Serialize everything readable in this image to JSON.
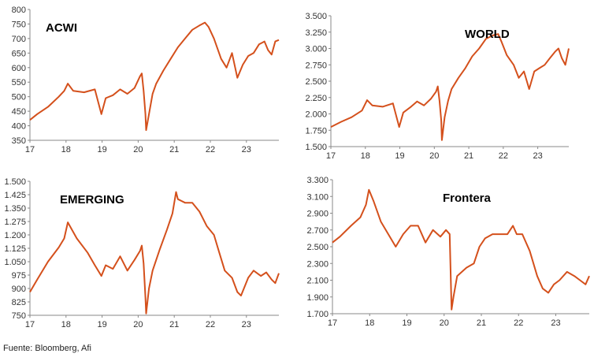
{
  "chart_data": [
    {
      "type": "line",
      "title": "ACWI",
      "ylim": [
        350,
        800
      ],
      "yticks": [
        "350",
        "400",
        "450",
        "500",
        "550",
        "600",
        "650",
        "700",
        "750",
        "800"
      ],
      "xlim": [
        17,
        23.9
      ],
      "xticks": [
        "17",
        "18",
        "19",
        "20",
        "21",
        "22",
        "23"
      ],
      "color": "#D4501C",
      "series": [
        {
          "x": [
            17,
            17.2,
            17.5,
            17.8,
            17.95,
            18.05,
            18.2,
            18.5,
            18.8,
            18.98,
            19.1,
            19.3,
            19.5,
            19.7,
            19.9,
            20.05,
            20.1,
            20.15,
            20.2,
            20.22,
            20.3,
            20.4,
            20.5,
            20.7,
            20.9,
            21.1,
            21.3,
            21.5,
            21.7,
            21.85,
            21.95,
            22.1,
            22.3,
            22.45,
            22.6,
            22.75,
            22.9,
            23.05,
            23.2,
            23.35,
            23.5,
            23.6,
            23.7,
            23.8,
            23.9
          ],
          "y": [
            420,
            440,
            465,
            500,
            520,
            545,
            520,
            515,
            525,
            440,
            495,
            505,
            525,
            510,
            530,
            570,
            580,
            520,
            440,
            385,
            440,
            510,
            545,
            590,
            630,
            670,
            700,
            730,
            745,
            755,
            740,
            700,
            630,
            600,
            650,
            565,
            610,
            640,
            650,
            680,
            690,
            660,
            645,
            690,
            695
          ]
        }
      ]
    },
    {
      "type": "line",
      "title": "WORLD",
      "ylim": [
        1500,
        3500
      ],
      "yticks": [
        "1.500",
        "1.750",
        "2.000",
        "2.250",
        "2.500",
        "2.750",
        "3.000",
        "3.250",
        "3.500"
      ],
      "xlim": [
        17,
        23.9
      ],
      "xticks": [
        "17",
        "18",
        "19",
        "20",
        "21",
        "22",
        "23"
      ],
      "color": "#D4501C",
      "series": [
        {
          "x": [
            17,
            17.3,
            17.6,
            17.9,
            18.05,
            18.2,
            18.5,
            18.8,
            18.98,
            19.1,
            19.3,
            19.5,
            19.7,
            19.9,
            20.05,
            20.1,
            20.15,
            20.2,
            20.22,
            20.3,
            20.4,
            20.5,
            20.7,
            20.9,
            21.1,
            21.3,
            21.5,
            21.7,
            21.85,
            21.95,
            22.1,
            22.3,
            22.45,
            22.6,
            22.75,
            22.9,
            23.05,
            23.2,
            23.35,
            23.5,
            23.6,
            23.7,
            23.8,
            23.9
          ],
          "y": [
            1800,
            1880,
            1950,
            2050,
            2210,
            2130,
            2110,
            2160,
            1800,
            2020,
            2100,
            2190,
            2130,
            2230,
            2340,
            2420,
            2200,
            1900,
            1600,
            1950,
            2200,
            2380,
            2550,
            2700,
            2880,
            3000,
            3150,
            3200,
            3220,
            3100,
            2900,
            2750,
            2550,
            2650,
            2380,
            2650,
            2700,
            2750,
            2850,
            2950,
            3000,
            2850,
            2750,
            3000
          ]
        }
      ]
    },
    {
      "type": "line",
      "title": "EMERGING",
      "ylim": [
        750,
        1500
      ],
      "yticks": [
        "750",
        "825",
        "900",
        "975",
        "1.050",
        "1.125",
        "1.200",
        "1.275",
        "1.350",
        "1.425",
        "1.500"
      ],
      "xlim": [
        17,
        23.9
      ],
      "xticks": [
        "17",
        "18",
        "19",
        "20",
        "21",
        "22",
        "23"
      ],
      "color": "#D4501C",
      "series": [
        {
          "x": [
            17,
            17.2,
            17.5,
            17.8,
            17.95,
            18.05,
            18.3,
            18.6,
            18.8,
            18.98,
            19.1,
            19.3,
            19.5,
            19.7,
            19.9,
            20.05,
            20.1,
            20.15,
            20.2,
            20.22,
            20.3,
            20.4,
            20.6,
            20.8,
            20.95,
            21.05,
            21.1,
            21.3,
            21.5,
            21.7,
            21.9,
            22.1,
            22.25,
            22.4,
            22.6,
            22.75,
            22.85,
            23.05,
            23.2,
            23.4,
            23.55,
            23.7,
            23.8,
            23.9
          ],
          "y": [
            880,
            950,
            1050,
            1130,
            1180,
            1270,
            1180,
            1100,
            1030,
            970,
            1030,
            1010,
            1080,
            1000,
            1060,
            1110,
            1140,
            1040,
            850,
            760,
            900,
            1000,
            1120,
            1230,
            1320,
            1440,
            1400,
            1380,
            1380,
            1330,
            1250,
            1200,
            1100,
            1000,
            960,
            880,
            860,
            960,
            1000,
            970,
            990,
            950,
            930,
            985
          ]
        }
      ]
    },
    {
      "type": "line",
      "title": "Frontera",
      "ylim": [
        1700,
        3300
      ],
      "yticks": [
        "1.700",
        "1.900",
        "2.100",
        "2.300",
        "2.500",
        "2.700",
        "2.900",
        "3.100",
        "3.300"
      ],
      "xlim": [
        17,
        23.9
      ],
      "xticks": [
        "17",
        "18",
        "19",
        "20",
        "21",
        "22",
        "23"
      ],
      "color": "#D4501C",
      "series": [
        {
          "x": [
            17,
            17.2,
            17.5,
            17.75,
            17.9,
            17.98,
            18.1,
            18.3,
            18.5,
            18.7,
            18.9,
            19.1,
            19.3,
            19.5,
            19.7,
            19.9,
            20.05,
            20.15,
            20.2,
            20.25,
            20.35,
            20.6,
            20.8,
            20.95,
            21.1,
            21.3,
            21.5,
            21.7,
            21.85,
            21.95,
            22.1,
            22.3,
            22.5,
            22.65,
            22.8,
            22.95,
            23.1,
            23.3,
            23.5,
            23.65,
            23.8,
            23.9
          ],
          "y": [
            2550,
            2620,
            2750,
            2850,
            3000,
            3180,
            3050,
            2800,
            2650,
            2500,
            2650,
            2750,
            2750,
            2550,
            2700,
            2620,
            2700,
            2650,
            1750,
            1900,
            2150,
            2250,
            2300,
            2500,
            2600,
            2650,
            2650,
            2650,
            2750,
            2650,
            2650,
            2450,
            2150,
            2000,
            1950,
            2050,
            2100,
            2200,
            2150,
            2100,
            2050,
            2150
          ]
        }
      ]
    }
  ],
  "source": "Fuente: Bloomberg, Afi"
}
